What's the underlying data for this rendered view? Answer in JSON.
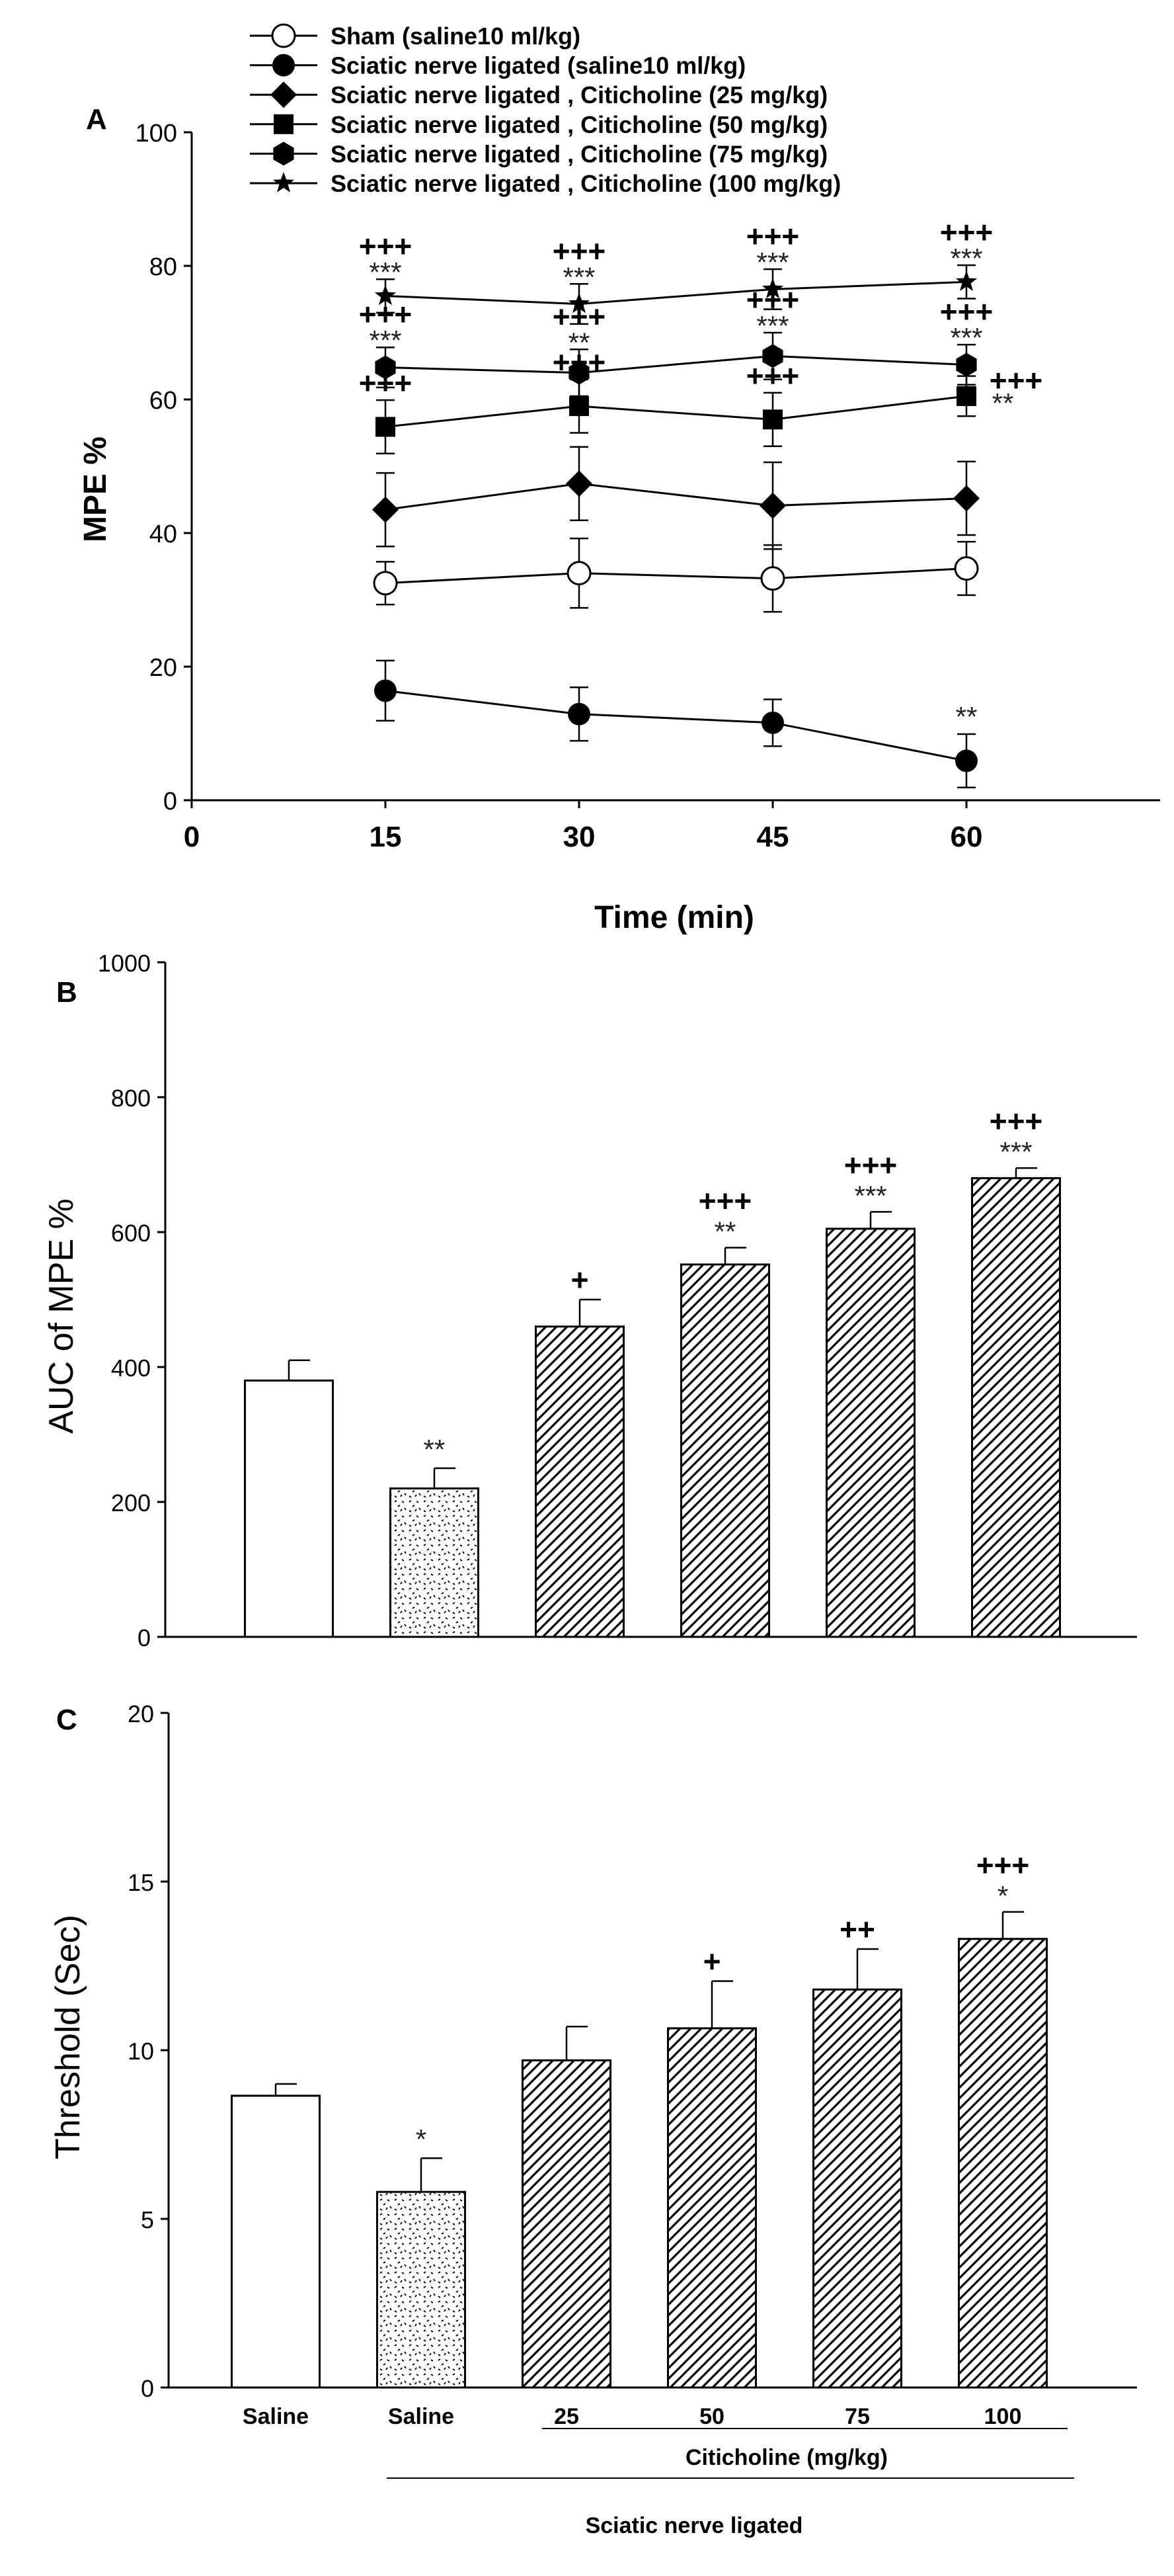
{
  "colors": {
    "ink": "#000000",
    "background": "#ffffff"
  },
  "chart_data": [
    {
      "panel": "A",
      "type": "line",
      "xlabel": "Time (min)",
      "ylabel": "MPE %",
      "x_ticks": [
        "0",
        "15",
        "30",
        "45",
        "60"
      ],
      "y_ticks": [
        "0",
        "20",
        "40",
        "60",
        "80",
        "100"
      ],
      "xlim": [
        0,
        75
      ],
      "ylim": [
        0,
        100
      ],
      "x": [
        15,
        30,
        45,
        60
      ],
      "legend": [
        "Sham (saline10 ml/kg)",
        "Sciatic nerve ligated (saline10 ml/kg)",
        "Sciatic nerve ligated , Citicholine (25 mg/kg)",
        "Sciatic nerve ligated , Citicholine (50 mg/kg)",
        "Sciatic nerve ligated , Citicholine (75 mg/kg)",
        "Sciatic nerve ligated , Citicholine (100 mg/kg)"
      ],
      "series": [
        {
          "name": "Sham (saline10 ml/kg)",
          "marker": "open-circle",
          "values": [
            32.5,
            34,
            33.2,
            34.7
          ],
          "errors": [
            3.2,
            5.2,
            5.0,
            4.0
          ],
          "annotations": [
            [],
            [],
            [],
            []
          ]
        },
        {
          "name": "Sciatic nerve ligated (saline10 ml/kg)",
          "marker": "circle",
          "values": [
            16.4,
            12.9,
            11.6,
            5.9
          ],
          "errors": [
            4.5,
            4.0,
            3.5,
            4.0
          ],
          "annotations": [
            [],
            [],
            [],
            [
              "**"
            ]
          ]
        },
        {
          "name": "Sciatic nerve ligated , Citicholine (25 mg/kg)",
          "marker": "diamond",
          "values": [
            43.5,
            47.4,
            44.1,
            45.2
          ],
          "errors": [
            5.5,
            5.5,
            6.5,
            5.5
          ],
          "annotations": [
            [],
            [],
            [],
            []
          ]
        },
        {
          "name": "Sciatic nerve ligated , Citicholine (50 mg/kg)",
          "marker": "square",
          "values": [
            55.9,
            59,
            57,
            60.5
          ],
          "errors": [
            4.0,
            4.0,
            4.0,
            3.0
          ],
          "annotations": [
            [
              "+++"
            ],
            [
              "+++"
            ],
            [
              "+++"
            ],
            [
              "**",
              "+++"
            ]
          ]
        },
        {
          "name": "Sciatic nerve ligated , Citicholine (75 mg/kg)",
          "marker": "hexagon",
          "values": [
            64.8,
            64,
            66.5,
            65.2
          ],
          "errors": [
            3.0,
            3.5,
            3.5,
            3.0
          ],
          "annotations": [
            [
              "***",
              "+++"
            ],
            [
              "**",
              "+++"
            ],
            [
              "***",
              "+++"
            ],
            [
              "***",
              "+++"
            ]
          ]
        },
        {
          "name": "Sciatic nerve ligated , Citicholine (100 mg/kg)",
          "marker": "star",
          "values": [
            75.5,
            74.3,
            76.5,
            77.6
          ],
          "errors": [
            2.5,
            3.0,
            3.0,
            2.5
          ],
          "annotations": [
            [
              "***",
              "+++"
            ],
            [
              "***",
              "+++"
            ],
            [
              "***",
              "+++"
            ],
            [
              "***",
              "+++"
            ]
          ]
        }
      ]
    },
    {
      "panel": "B",
      "type": "bar",
      "ylabel": "AUC of MPE %",
      "y_ticks": [
        "0",
        "200",
        "400",
        "600",
        "800",
        "1000"
      ],
      "ylim": [
        0,
        1000
      ],
      "categories": [
        "Saline",
        "Saline",
        "25",
        "50",
        "75",
        "100"
      ],
      "values": [
        380,
        220,
        460,
        552,
        605,
        680
      ],
      "errors": [
        30,
        30,
        40,
        25,
        25,
        15
      ],
      "fills": [
        "white",
        "dots",
        "hatch",
        "hatch",
        "hatch",
        "hatch"
      ],
      "annotations": [
        [],
        [
          "**"
        ],
        [
          "+"
        ],
        [
          "**",
          "+++"
        ],
        [
          "***",
          "+++"
        ],
        [
          "***",
          "+++"
        ]
      ]
    },
    {
      "panel": "C",
      "type": "bar",
      "ylabel": "Threshold (Sec)",
      "y_ticks": [
        "0",
        "5",
        "10",
        "15",
        "20"
      ],
      "ylim": [
        0,
        20
      ],
      "categories": [
        "Saline",
        "Saline",
        "25",
        "50",
        "75",
        "100"
      ],
      "values": [
        8.65,
        5.8,
        9.7,
        10.65,
        11.8,
        13.3
      ],
      "errors": [
        0.35,
        1.0,
        1.0,
        1.4,
        1.2,
        0.8
      ],
      "fills": [
        "white",
        "dots",
        "hatch",
        "hatch",
        "hatch",
        "hatch"
      ],
      "annotations": [
        [],
        [
          "*"
        ],
        [],
        [
          "+"
        ],
        [
          "++"
        ],
        [
          "*",
          "+++"
        ]
      ],
      "group_labels": {
        "citicholine": "Citicholine (mg/kg)",
        "ligated": "Sciatic nerve ligated"
      }
    }
  ]
}
